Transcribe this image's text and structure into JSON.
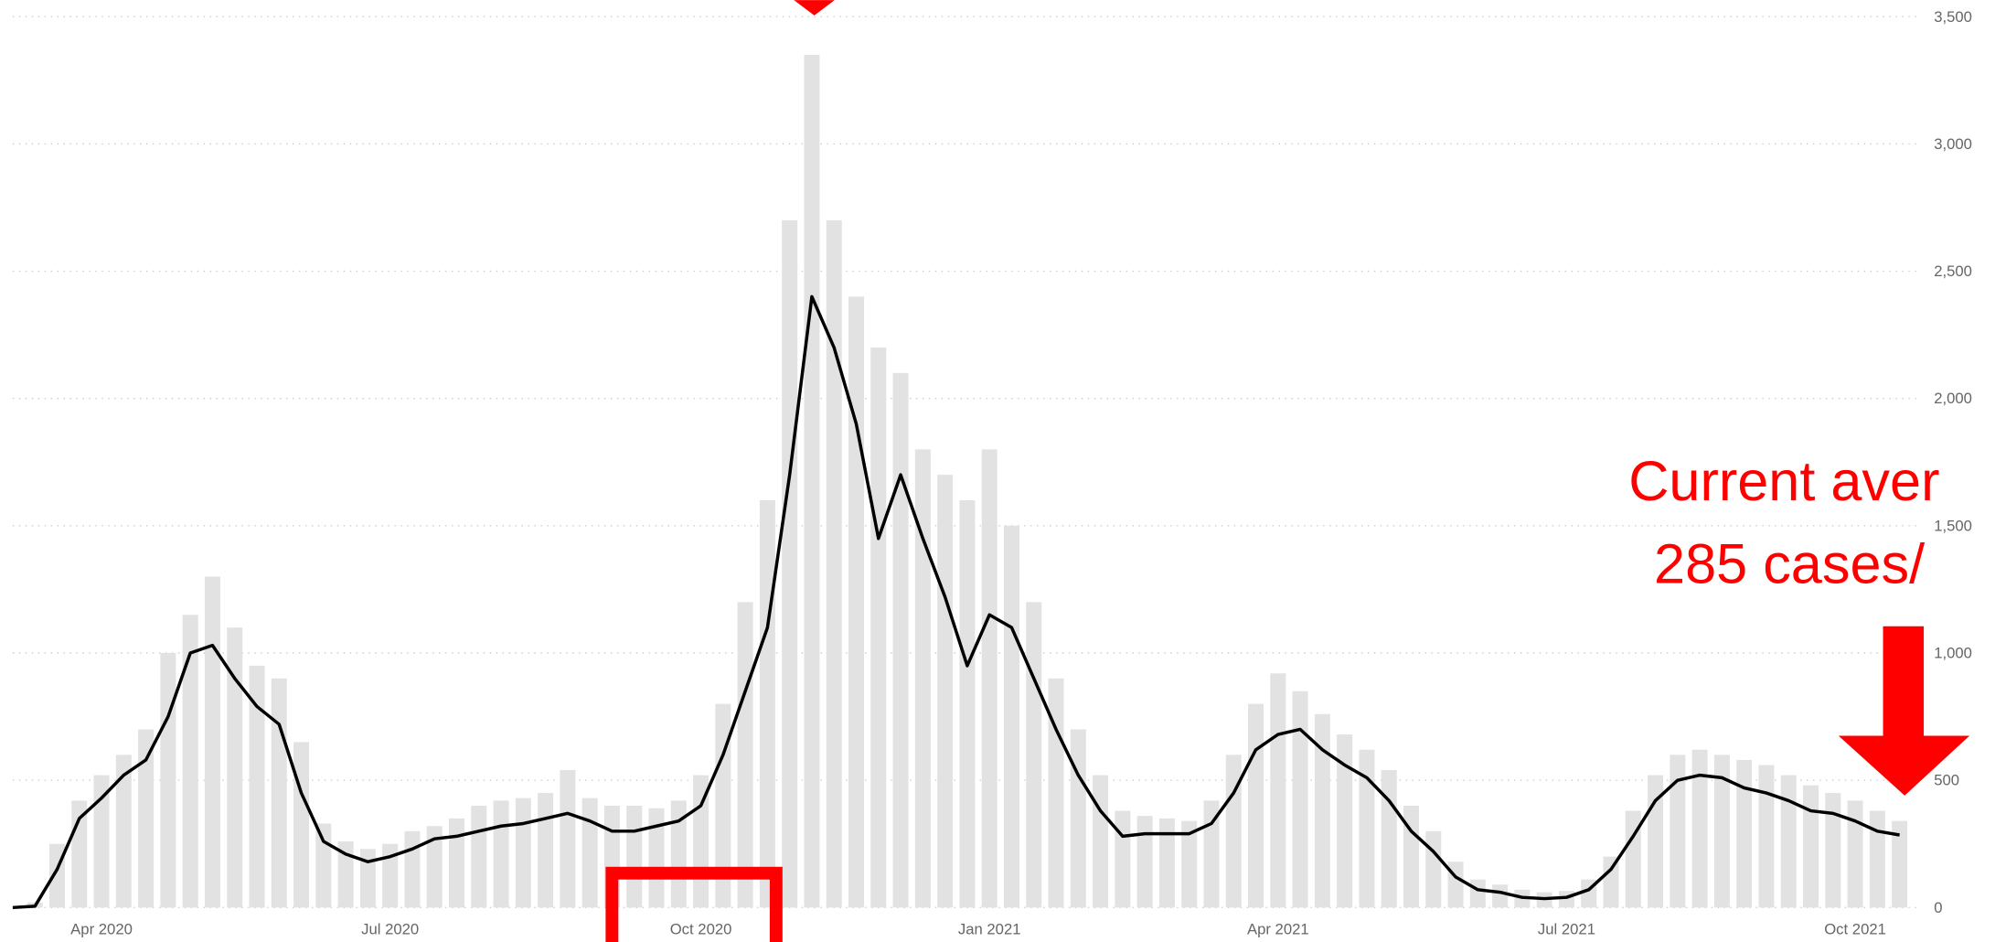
{
  "chart_data": {
    "type": "bar",
    "categories": [
      null,
      null,
      null,
      null,
      "Apr 2020",
      null,
      null,
      null,
      null,
      null,
      null,
      null,
      null,
      null,
      null,
      null,
      null,
      "Jul 2020",
      null,
      null,
      null,
      null,
      null,
      null,
      null,
      null,
      null,
      null,
      null,
      null,
      null,
      "Oct 2020",
      null,
      null,
      null,
      null,
      null,
      null,
      null,
      null,
      null,
      null,
      null,
      null,
      "Jan 2021",
      null,
      null,
      null,
      null,
      null,
      null,
      null,
      null,
      null,
      null,
      null,
      null,
      "Apr 2021",
      null,
      null,
      null,
      null,
      null,
      null,
      null,
      null,
      null,
      null,
      null,
      null,
      "Jul 2021",
      null,
      null,
      null,
      null,
      null,
      null,
      null,
      null,
      null,
      null,
      null,
      null,
      "Oct 2021",
      null,
      null
    ],
    "series": [
      {
        "type": "bar",
        "color": "#e2e2e2",
        "values": [
          0,
          20,
          250,
          420,
          520,
          600,
          700,
          1000,
          1150,
          1300,
          1100,
          950,
          900,
          650,
          330,
          260,
          230,
          250,
          300,
          320,
          350,
          400,
          420,
          430,
          450,
          540,
          430,
          400,
          400,
          390,
          420,
          520,
          800,
          1200,
          1600,
          2700,
          3350,
          2700,
          2400,
          2200,
          2100,
          1800,
          1700,
          1600,
          1800,
          1500,
          1200,
          900,
          700,
          520,
          380,
          360,
          350,
          340,
          420,
          600,
          800,
          920,
          850,
          760,
          680,
          620,
          540,
          400,
          300,
          180,
          110,
          90,
          70,
          60,
          65,
          110,
          200,
          380,
          520,
          600,
          620,
          600,
          580,
          560,
          520,
          480,
          450,
          420,
          380,
          340
        ]
      },
      {
        "type": "line",
        "color": "#000000",
        "values": [
          0,
          5,
          150,
          350,
          430,
          520,
          580,
          750,
          1000,
          1030,
          900,
          790,
          720,
          450,
          260,
          210,
          180,
          200,
          230,
          270,
          280,
          300,
          320,
          330,
          350,
          370,
          340,
          300,
          300,
          320,
          340,
          400,
          600,
          850,
          1100,
          1700,
          2400,
          2200,
          1900,
          1450,
          1700,
          1450,
          1220,
          950,
          1150,
          1100,
          900,
          700,
          520,
          380,
          280,
          290,
          290,
          290,
          330,
          450,
          620,
          680,
          700,
          620,
          560,
          510,
          420,
          300,
          220,
          120,
          70,
          60,
          40,
          35,
          40,
          70,
          150,
          280,
          420,
          500,
          520,
          510,
          470,
          450,
          420,
          380,
          370,
          340,
          300,
          285
        ]
      }
    ],
    "ylim": [
      0,
      3500
    ],
    "yticks": [
      0,
      500,
      {
        "value": 1000,
        "label": "1,000"
      },
      {
        "value": 1500,
        "label": "1,500"
      },
      {
        "value": 2000,
        "label": "2,000"
      },
      {
        "value": 2500,
        "label": "2,500"
      },
      {
        "value": 3000,
        "label": "3,000"
      },
      {
        "value": 3500,
        "label": "3,500"
      }
    ],
    "grid": true,
    "annotations": [
      "Current aver",
      "285 cases/"
    ]
  }
}
